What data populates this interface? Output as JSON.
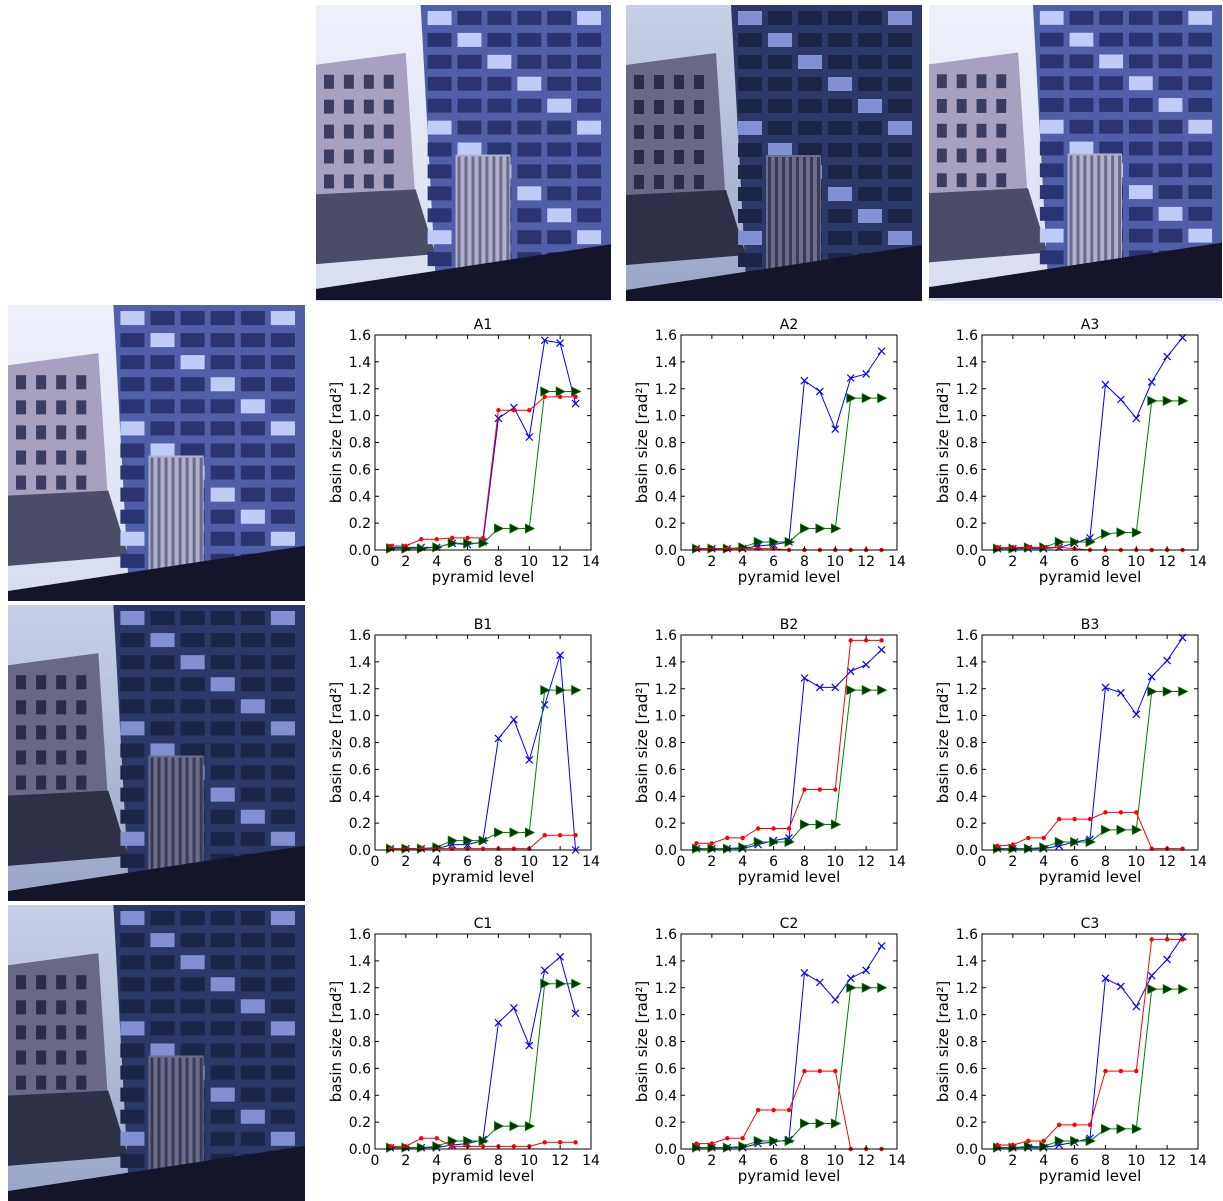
{
  "photos": {
    "row0_col1": "building-photo",
    "row0_col2": "building-photo",
    "row0_col3": "building-photo",
    "row1_col0": "building-photo",
    "row2_col0": "building-photo",
    "row3_col0": "building-photo"
  },
  "colors": {
    "blue": "#0000ff",
    "green": "#007f00",
    "red": "#ff0000",
    "green_marker_fill": "#003300"
  },
  "axes": {
    "xlabel": "pyramid level",
    "ylabel": "basin size [rad²]",
    "xticks": [
      "0",
      "2",
      "4",
      "6",
      "8",
      "10",
      "12",
      "14"
    ],
    "yticks": [
      "0.0",
      "0.2",
      "0.4",
      "0.6",
      "0.8",
      "1.0",
      "1.2",
      "1.4",
      "1.6"
    ],
    "xlim": [
      0,
      14
    ],
    "ylim": [
      0,
      1.6
    ]
  },
  "chart_data": [
    {
      "type": "line",
      "title": "A1",
      "x": [
        1,
        2,
        3,
        4,
        5,
        6,
        7,
        8,
        9,
        10,
        11,
        12,
        13
      ],
      "series": [
        {
          "marker": "x",
          "color": "#0000ff",
          "values": [
            0.02,
            0.02,
            0.02,
            0.02,
            0.05,
            0.04,
            0.06,
            0.98,
            1.06,
            0.84,
            1.56,
            1.54,
            1.09
          ]
        },
        {
          "marker": "triangle",
          "color": "#007f00",
          "values": [
            0.01,
            0.01,
            0.01,
            0.02,
            0.05,
            0.05,
            0.05,
            0.16,
            0.16,
            0.16,
            1.18,
            1.18,
            1.18
          ]
        },
        {
          "marker": "dot",
          "color": "#ff0000",
          "values": [
            0.03,
            0.03,
            0.08,
            0.08,
            0.09,
            0.09,
            0.09,
            1.04,
            1.04,
            1.04,
            1.14,
            1.14,
            1.14
          ]
        }
      ]
    },
    {
      "type": "line",
      "title": "A2",
      "x": [
        1,
        2,
        3,
        4,
        5,
        6,
        7,
        8,
        9,
        10,
        11,
        12,
        13
      ],
      "series": [
        {
          "marker": "x",
          "color": "#0000ff",
          "values": [
            0.01,
            0.01,
            0.01,
            0.01,
            0.03,
            0.04,
            0.06,
            1.26,
            1.18,
            0.9,
            1.28,
            1.31,
            1.48
          ]
        },
        {
          "marker": "triangle",
          "color": "#007f00",
          "values": [
            0.01,
            0.01,
            0.01,
            0.02,
            0.06,
            0.06,
            0.06,
            0.16,
            0.16,
            0.16,
            1.13,
            1.13,
            1.13
          ]
        },
        {
          "marker": "dot",
          "color": "#ff0000",
          "values": [
            0.01,
            0.01,
            0.01,
            0.01,
            0.01,
            0.01,
            0.0,
            0.0,
            0.0,
            0.0,
            0.0,
            0.0,
            0.0
          ]
        }
      ]
    },
    {
      "type": "line",
      "title": "A3",
      "x": [
        1,
        2,
        3,
        4,
        5,
        6,
        7,
        8,
        9,
        10,
        11,
        12,
        13
      ],
      "series": [
        {
          "marker": "x",
          "color": "#0000ff",
          "values": [
            0.01,
            0.01,
            0.01,
            0.01,
            0.02,
            0.05,
            0.09,
            1.23,
            1.12,
            0.98,
            1.25,
            1.44,
            1.58
          ]
        },
        {
          "marker": "triangle",
          "color": "#007f00",
          "values": [
            0.01,
            0.01,
            0.02,
            0.02,
            0.06,
            0.06,
            0.06,
            0.12,
            0.13,
            0.13,
            1.11,
            1.11,
            1.11
          ]
        },
        {
          "marker": "dot",
          "color": "#ff0000",
          "values": [
            0.02,
            0.02,
            0.02,
            0.02,
            0.02,
            0.01,
            0.0,
            0.0,
            0.0,
            0.0,
            0.0,
            0.0,
            0.0
          ]
        }
      ]
    },
    {
      "type": "line",
      "title": "B1",
      "x": [
        1,
        2,
        3,
        4,
        5,
        6,
        7,
        8,
        9,
        10,
        11,
        12,
        13
      ],
      "series": [
        {
          "marker": "x",
          "color": "#0000ff",
          "values": [
            0.01,
            0.01,
            0.01,
            0.01,
            0.04,
            0.04,
            0.07,
            0.83,
            0.97,
            0.67,
            1.08,
            1.45,
            0.0
          ]
        },
        {
          "marker": "triangle",
          "color": "#007f00",
          "values": [
            0.01,
            0.01,
            0.01,
            0.02,
            0.07,
            0.07,
            0.07,
            0.13,
            0.13,
            0.13,
            1.19,
            1.19,
            1.19
          ]
        },
        {
          "marker": "dot",
          "color": "#ff0000",
          "values": [
            0.01,
            0.01,
            0.01,
            0.01,
            0.01,
            0.01,
            0.01,
            0.01,
            0.01,
            0.01,
            0.11,
            0.11,
            0.11
          ]
        }
      ]
    },
    {
      "type": "line",
      "title": "B2",
      "x": [
        1,
        2,
        3,
        4,
        5,
        6,
        7,
        8,
        9,
        10,
        11,
        12,
        13
      ],
      "series": [
        {
          "marker": "x",
          "color": "#0000ff",
          "values": [
            0.01,
            0.01,
            0.01,
            0.01,
            0.04,
            0.07,
            0.09,
            1.28,
            1.21,
            1.21,
            1.33,
            1.38,
            1.49
          ]
        },
        {
          "marker": "triangle",
          "color": "#007f00",
          "values": [
            0.01,
            0.01,
            0.01,
            0.02,
            0.06,
            0.06,
            0.06,
            0.19,
            0.19,
            0.19,
            1.19,
            1.19,
            1.19
          ]
        },
        {
          "marker": "dot",
          "color": "#ff0000",
          "values": [
            0.05,
            0.05,
            0.09,
            0.09,
            0.16,
            0.16,
            0.16,
            0.45,
            0.45,
            0.45,
            1.56,
            1.56,
            1.56
          ]
        }
      ]
    },
    {
      "type": "line",
      "title": "B3",
      "x": [
        1,
        2,
        3,
        4,
        5,
        6,
        7,
        8,
        9,
        10,
        11,
        12,
        13
      ],
      "series": [
        {
          "marker": "x",
          "color": "#0000ff",
          "values": [
            0.01,
            0.01,
            0.01,
            0.01,
            0.03,
            0.06,
            0.08,
            1.21,
            1.17,
            1.01,
            1.29,
            1.41,
            1.58
          ]
        },
        {
          "marker": "triangle",
          "color": "#007f00",
          "values": [
            0.01,
            0.01,
            0.01,
            0.02,
            0.06,
            0.06,
            0.06,
            0.15,
            0.15,
            0.15,
            1.18,
            1.18,
            1.18
          ]
        },
        {
          "marker": "dot",
          "color": "#ff0000",
          "values": [
            0.03,
            0.04,
            0.09,
            0.09,
            0.23,
            0.23,
            0.23,
            0.28,
            0.28,
            0.28,
            0.01,
            0.01,
            0.01
          ]
        }
      ]
    },
    {
      "type": "line",
      "title": "C1",
      "x": [
        1,
        2,
        3,
        4,
        5,
        6,
        7,
        8,
        9,
        10,
        11,
        12,
        13
      ],
      "series": [
        {
          "marker": "x",
          "color": "#0000ff",
          "values": [
            0.01,
            0.01,
            0.01,
            0.01,
            0.03,
            0.04,
            0.07,
            0.94,
            1.05,
            0.77,
            1.33,
            1.43,
            1.01
          ]
        },
        {
          "marker": "triangle",
          "color": "#007f00",
          "values": [
            0.01,
            0.01,
            0.01,
            0.02,
            0.06,
            0.06,
            0.06,
            0.17,
            0.17,
            0.17,
            1.23,
            1.23,
            1.23
          ]
        },
        {
          "marker": "dot",
          "color": "#ff0000",
          "values": [
            0.02,
            0.02,
            0.08,
            0.08,
            0.02,
            0.02,
            0.02,
            0.02,
            0.02,
            0.02,
            0.05,
            0.05,
            0.05
          ]
        }
      ]
    },
    {
      "type": "line",
      "title": "C2",
      "x": [
        1,
        2,
        3,
        4,
        5,
        6,
        7,
        8,
        9,
        10,
        11,
        12,
        13
      ],
      "series": [
        {
          "marker": "x",
          "color": "#0000ff",
          "values": [
            0.01,
            0.01,
            0.01,
            0.01,
            0.04,
            0.05,
            0.07,
            1.31,
            1.24,
            1.11,
            1.27,
            1.33,
            1.51
          ]
        },
        {
          "marker": "triangle",
          "color": "#007f00",
          "values": [
            0.01,
            0.01,
            0.01,
            0.02,
            0.06,
            0.06,
            0.06,
            0.19,
            0.19,
            0.19,
            1.2,
            1.2,
            1.2
          ]
        },
        {
          "marker": "dot",
          "color": "#ff0000",
          "values": [
            0.04,
            0.04,
            0.08,
            0.08,
            0.29,
            0.29,
            0.29,
            0.58,
            0.58,
            0.58,
            0.0,
            0.0,
            0.0
          ]
        }
      ]
    },
    {
      "type": "line",
      "title": "C3",
      "x": [
        1,
        2,
        3,
        4,
        5,
        6,
        7,
        8,
        9,
        10,
        11,
        12,
        13
      ],
      "series": [
        {
          "marker": "x",
          "color": "#0000ff",
          "values": [
            0.01,
            0.01,
            0.01,
            0.01,
            0.03,
            0.05,
            0.08,
            1.27,
            1.21,
            1.06,
            1.29,
            1.41,
            1.58
          ]
        },
        {
          "marker": "triangle",
          "color": "#007f00",
          "values": [
            0.01,
            0.01,
            0.02,
            0.02,
            0.06,
            0.06,
            0.06,
            0.15,
            0.15,
            0.15,
            1.19,
            1.19,
            1.19
          ]
        },
        {
          "marker": "dot",
          "color": "#ff0000",
          "values": [
            0.03,
            0.03,
            0.06,
            0.06,
            0.18,
            0.18,
            0.18,
            0.58,
            0.58,
            0.58,
            1.56,
            1.56,
            1.56
          ]
        }
      ]
    }
  ]
}
